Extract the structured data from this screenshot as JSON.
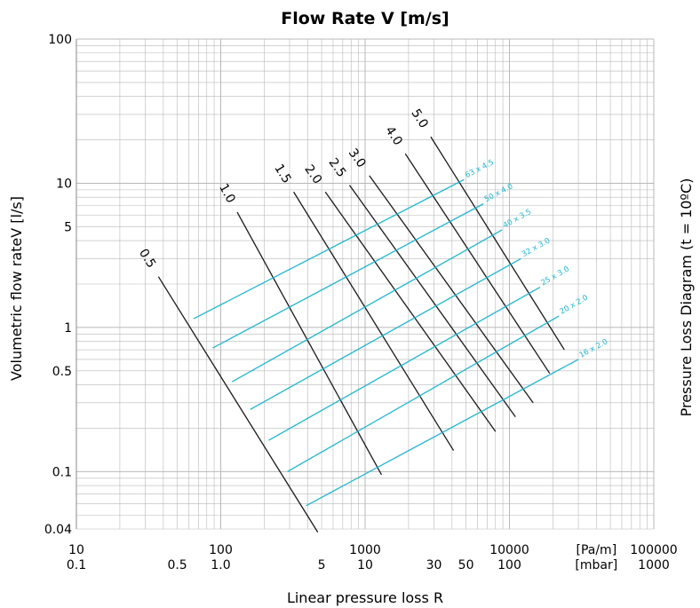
{
  "chart_data": {
    "type": "line",
    "title": "Flow Rate V [m/s]",
    "xlabel": "Linear pressure loss R",
    "ylabel": "Volumetric flow rateV [l/s]",
    "right_label": "Pressure Loss Diagram (t = 10ºC)",
    "x_scale": "log",
    "y_scale": "log",
    "xlim": [
      10,
      100000
    ],
    "ylim": [
      0.04,
      100
    ],
    "grid": true,
    "x_ticks": [
      {
        "value": 10,
        "label": "10",
        "sublabel": "0.1"
      },
      {
        "value": 50,
        "label": "",
        "sublabel": "0.5"
      },
      {
        "value": 100,
        "label": "100",
        "sublabel": "1.0"
      },
      {
        "value": 500,
        "label": "",
        "sublabel": "5"
      },
      {
        "value": 1000,
        "label": "1000",
        "sublabel": "10"
      },
      {
        "value": 3000,
        "label": "",
        "sublabel": "30"
      },
      {
        "value": 5000,
        "label": "",
        "sublabel": "50"
      },
      {
        "value": 10000,
        "label": "10000",
        "sublabel": "100"
      },
      {
        "value": 40000,
        "label": "[Pa/m]",
        "sublabel": "[mbar]"
      },
      {
        "value": 100000,
        "label": "100000",
        "sublabel": "1000"
      }
    ],
    "y_ticks": [
      {
        "value": 100,
        "label": "100"
      },
      {
        "value": 10,
        "label": "10"
      },
      {
        "value": 5,
        "label": "5"
      },
      {
        "value": 1,
        "label": "1"
      },
      {
        "value": 0.5,
        "label": "0.5"
      },
      {
        "value": 0.1,
        "label": "0.1"
      },
      {
        "value": 0.04,
        "label": "0.04"
      }
    ],
    "velocity_lines": [
      {
        "name": "0.5",
        "points": [
          [
            37,
            2.25
          ],
          [
            470,
            0.038
          ]
        ]
      },
      {
        "name": "1.0",
        "points": [
          [
            130,
            6.3
          ],
          [
            1300,
            0.095
          ]
        ]
      },
      {
        "name": "1.5",
        "points": [
          [
            320,
            8.7
          ],
          [
            4100,
            0.14
          ]
        ]
      },
      {
        "name": "2.0",
        "points": [
          [
            530,
            8.7
          ],
          [
            8000,
            0.19
          ]
        ]
      },
      {
        "name": "2.5",
        "points": [
          [
            780,
            9.7
          ],
          [
            11000,
            0.24
          ]
        ]
      },
      {
        "name": "3.0",
        "points": [
          [
            1070,
            11.3
          ],
          [
            14600,
            0.3
          ]
        ]
      },
      {
        "name": "4.0",
        "points": [
          [
            1900,
            16
          ],
          [
            19000,
            0.48
          ]
        ]
      },
      {
        "name": "5.0",
        "points": [
          [
            2850,
            21
          ],
          [
            24000,
            0.7
          ]
        ]
      }
    ],
    "pipe_lines": [
      {
        "name": "63 x 4.5",
        "points": [
          [
            65,
            1.15
          ],
          [
            4850,
            10.6
          ]
        ]
      },
      {
        "name": "50 x 4.0",
        "points": [
          [
            88,
            0.72
          ],
          [
            6600,
            7.2
          ]
        ]
      },
      {
        "name": "40 x 3.5",
        "points": [
          [
            120,
            0.42
          ],
          [
            8900,
            4.75
          ]
        ]
      },
      {
        "name": "32 x 3.0",
        "points": [
          [
            160,
            0.27
          ],
          [
            12000,
            3.0
          ]
        ]
      },
      {
        "name": "25 x 3.0",
        "points": [
          [
            215,
            0.165
          ],
          [
            16300,
            1.9
          ]
        ]
      },
      {
        "name": "20 x 2.0",
        "points": [
          [
            290,
            0.1
          ],
          [
            22000,
            1.2
          ]
        ]
      },
      {
        "name": "16 x 2.0",
        "points": [
          [
            390,
            0.058
          ],
          [
            30000,
            0.6
          ]
        ]
      }
    ],
    "colors": {
      "velocity": "#1a1a1a",
      "pipe": "#1fb5d0",
      "grid": "#b8b8b8"
    }
  }
}
